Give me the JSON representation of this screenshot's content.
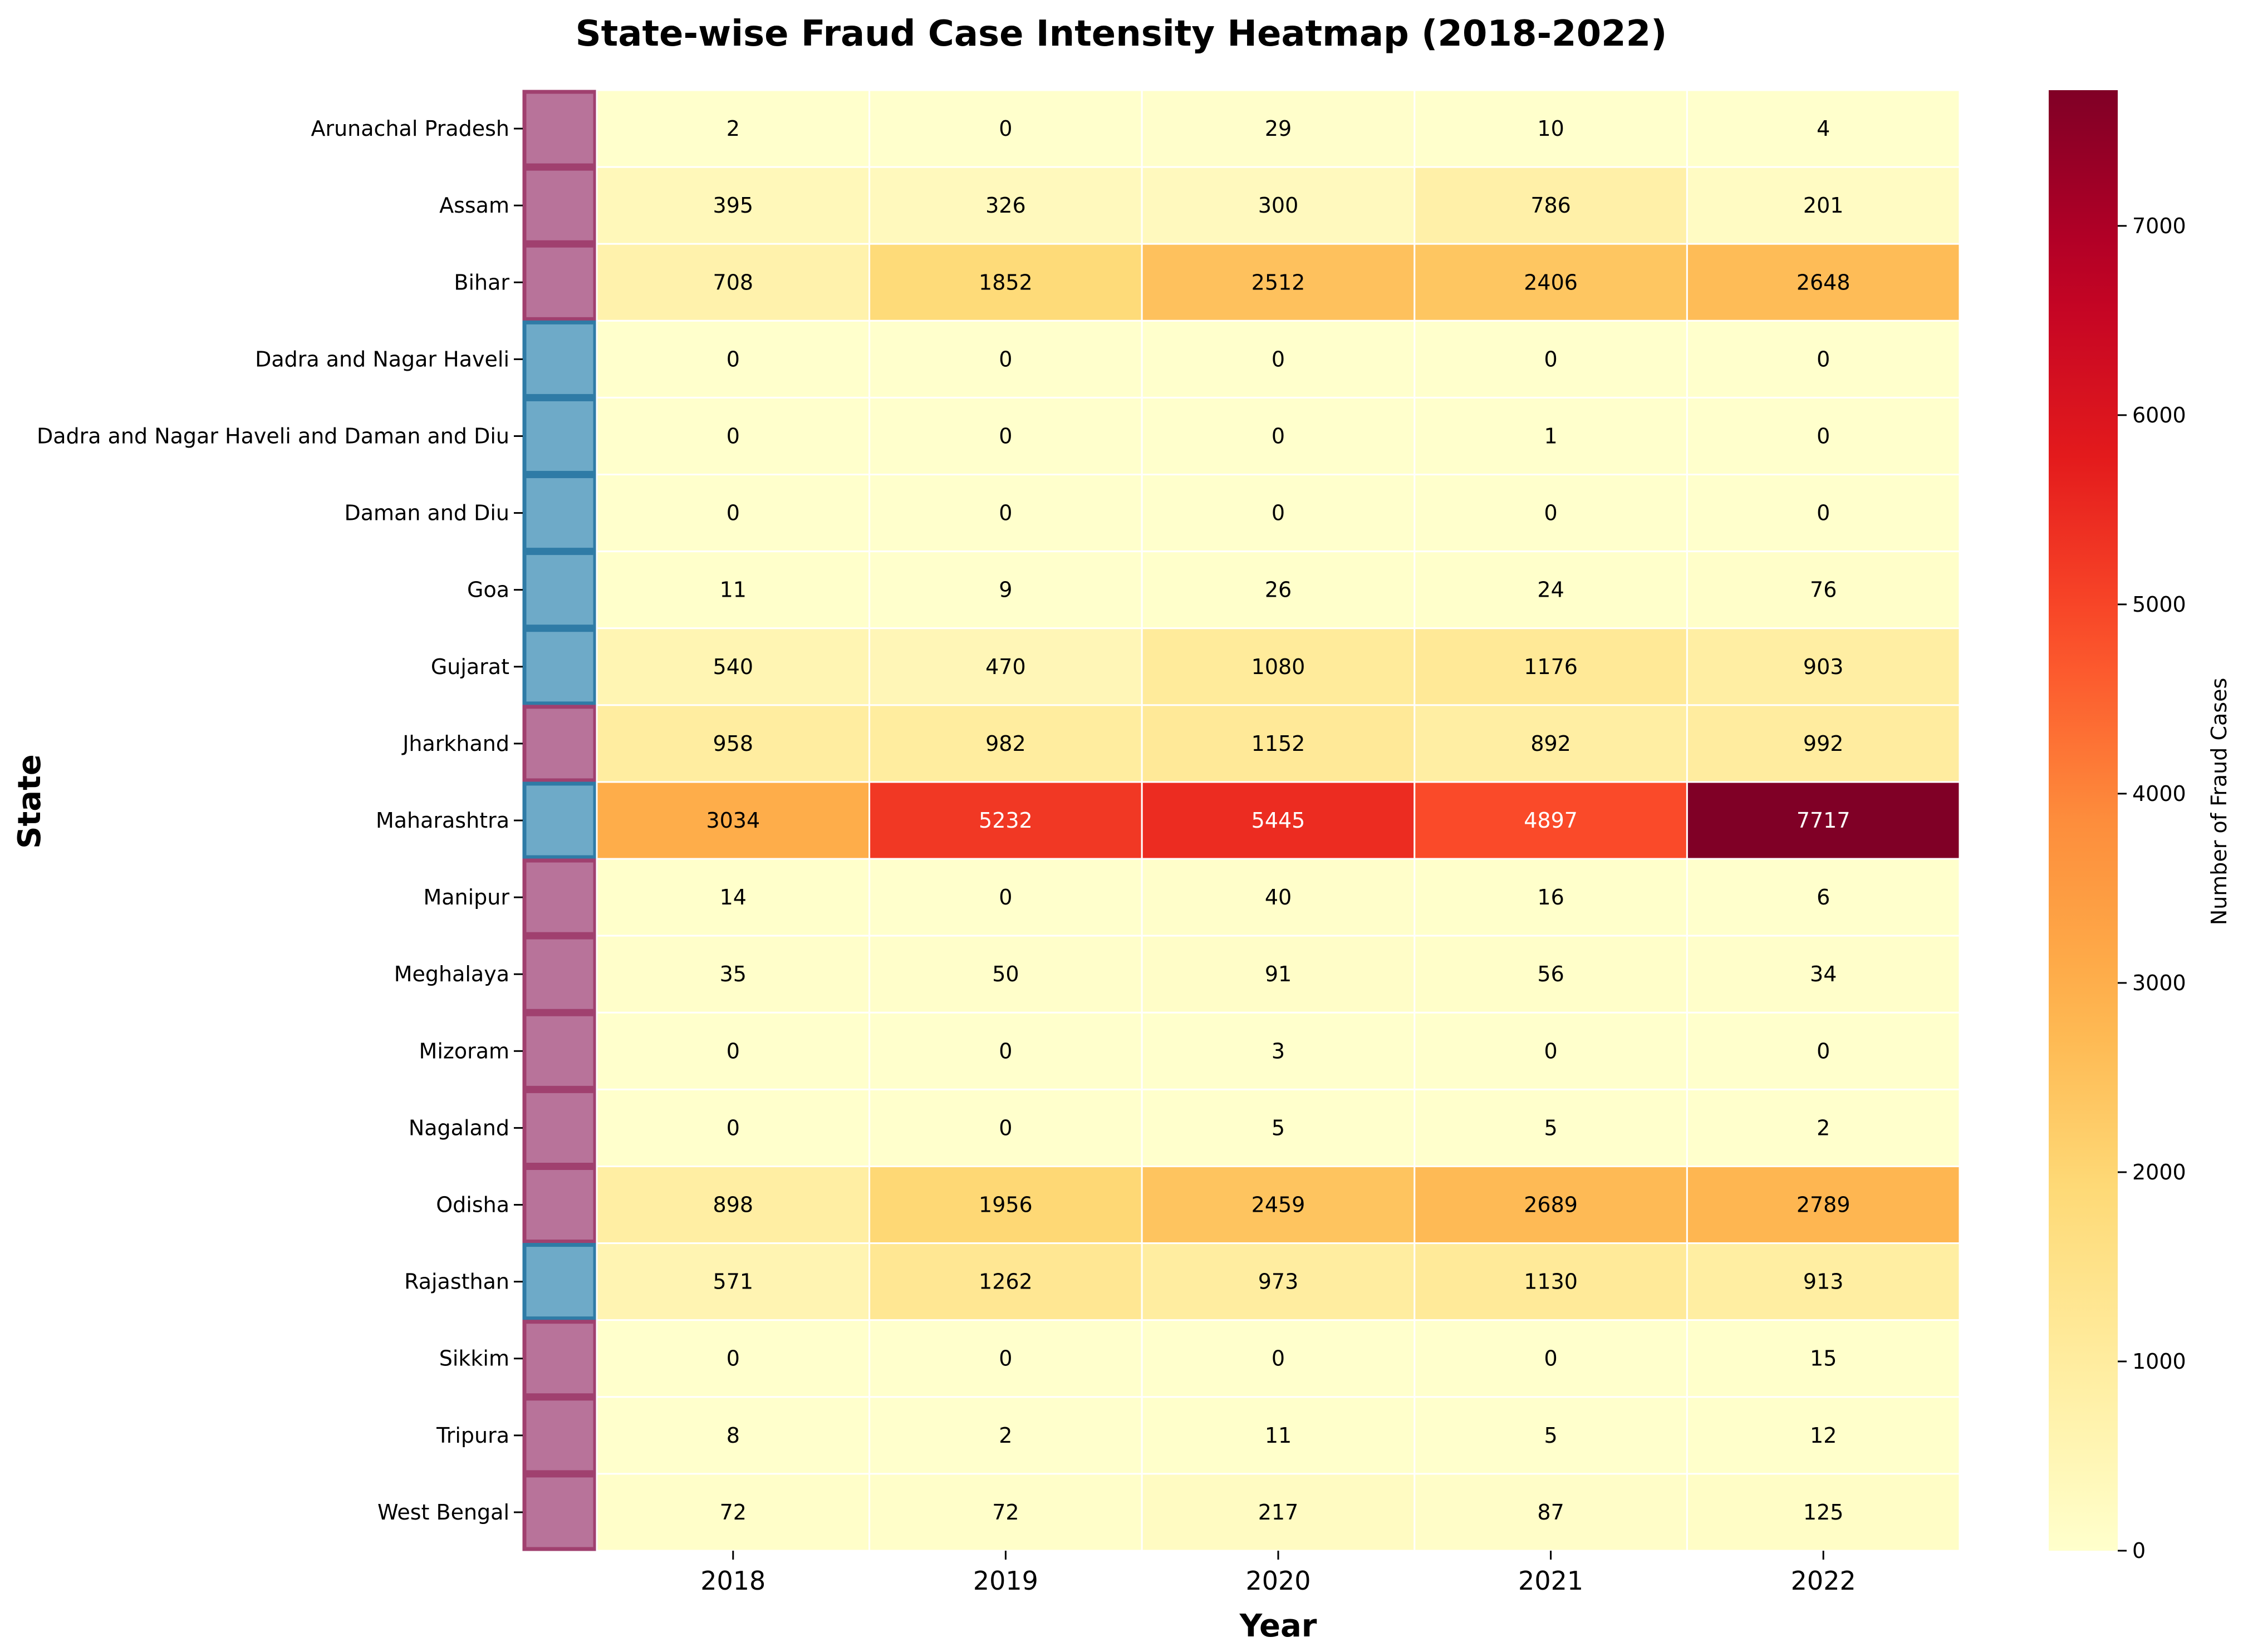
{
  "chart_data": {
    "type": "heatmap",
    "title": "State-wise Fraud Case Intensity Heatmap (2018-2022)",
    "xlabel": "Year",
    "ylabel": "State",
    "colorbar_label": "Number of Fraud Cases",
    "colormap": "YlOrRd",
    "value_range": [
      0,
      7717
    ],
    "colorbar_ticks": [
      0,
      1000,
      2000,
      3000,
      4000,
      5000,
      6000,
      7000
    ],
    "grid": false,
    "legend": "colorbar-right",
    "columns": [
      "2018",
      "2019",
      "2020",
      "2021",
      "2022"
    ],
    "rows": [
      {
        "state": "Arunachal Pradesh",
        "group": "A",
        "values": [
          2,
          0,
          29,
          10,
          4
        ]
      },
      {
        "state": "Assam",
        "group": "A",
        "values": [
          395,
          326,
          300,
          786,
          201
        ]
      },
      {
        "state": "Bihar",
        "group": "A",
        "values": [
          708,
          1852,
          2512,
          2406,
          2648
        ]
      },
      {
        "state": "Dadra and Nagar Haveli",
        "group": "B",
        "values": [
          0,
          0,
          0,
          0,
          0
        ]
      },
      {
        "state": "Dadra and Nagar Haveli and Daman and Diu",
        "group": "B",
        "values": [
          0,
          0,
          0,
          1,
          0
        ]
      },
      {
        "state": "Daman and Diu",
        "group": "B",
        "values": [
          0,
          0,
          0,
          0,
          0
        ]
      },
      {
        "state": "Goa",
        "group": "B",
        "values": [
          11,
          9,
          26,
          24,
          76
        ]
      },
      {
        "state": "Gujarat",
        "group": "B",
        "values": [
          540,
          470,
          1080,
          1176,
          903
        ]
      },
      {
        "state": "Jharkhand",
        "group": "A",
        "values": [
          958,
          982,
          1152,
          892,
          992
        ]
      },
      {
        "state": "Maharashtra",
        "group": "B",
        "values": [
          3034,
          5232,
          5445,
          4897,
          7717
        ]
      },
      {
        "state": "Manipur",
        "group": "A",
        "values": [
          14,
          0,
          40,
          16,
          6
        ]
      },
      {
        "state": "Meghalaya",
        "group": "A",
        "values": [
          35,
          50,
          91,
          56,
          34
        ]
      },
      {
        "state": "Mizoram",
        "group": "A",
        "values": [
          0,
          0,
          3,
          0,
          0
        ]
      },
      {
        "state": "Nagaland",
        "group": "A",
        "values": [
          0,
          0,
          5,
          5,
          2
        ]
      },
      {
        "state": "Odisha",
        "group": "A",
        "values": [
          898,
          1956,
          2459,
          2689,
          2789
        ]
      },
      {
        "state": "Rajasthan",
        "group": "B",
        "values": [
          571,
          1262,
          973,
          1130,
          913
        ]
      },
      {
        "state": "Sikkim",
        "group": "A",
        "values": [
          0,
          0,
          0,
          0,
          15
        ]
      },
      {
        "state": "Tripura",
        "group": "A",
        "values": [
          8,
          2,
          11,
          5,
          12
        ]
      },
      {
        "state": "West Bengal",
        "group": "A",
        "values": [
          72,
          72,
          217,
          87,
          125
        ]
      }
    ],
    "group_colors": {
      "A": "#b8739a",
      "B": "#6eaac8"
    },
    "group_edge_colors": {
      "A": "#a0406f",
      "B": "#2f7ba6"
    }
  }
}
